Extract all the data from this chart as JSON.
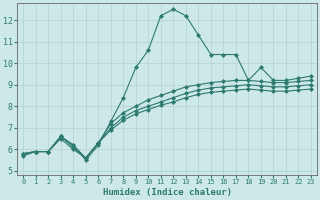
{
  "title": "",
  "xlabel": "Humidex (Indice chaleur)",
  "ylabel": "",
  "bg_color": "#cce8e8",
  "grid_color": "#b8d4d4",
  "line_color": "#2d7a6e",
  "xlim": [
    -0.5,
    23.5
  ],
  "ylim": [
    4.8,
    12.8
  ],
  "yticks": [
    5,
    6,
    7,
    8,
    9,
    10,
    11,
    12
  ],
  "xticks": [
    0,
    1,
    2,
    3,
    4,
    5,
    6,
    7,
    8,
    9,
    10,
    11,
    12,
    13,
    14,
    15,
    16,
    17,
    18,
    19,
    20,
    21,
    22,
    23
  ],
  "lines": [
    {
      "x": [
        0,
        1,
        2,
        3,
        4,
        5,
        6,
        7,
        8,
        9,
        10,
        11,
        12,
        13,
        14,
        15,
        16,
        17,
        18,
        19,
        20,
        21,
        22,
        23
      ],
      "y": [
        5.7,
        5.9,
        5.9,
        6.6,
        6.2,
        5.5,
        6.2,
        7.3,
        8.4,
        9.8,
        10.6,
        12.2,
        12.5,
        12.2,
        11.3,
        10.4,
        10.4,
        10.4,
        9.2,
        9.8,
        9.2,
        9.2,
        9.3,
        9.4
      ]
    },
    {
      "x": [
        0,
        1,
        2,
        3,
        4,
        5,
        6,
        7,
        8,
        9,
        10,
        11,
        12,
        13,
        14,
        15,
        16,
        17,
        18,
        19,
        20,
        21,
        22,
        23
      ],
      "y": [
        5.8,
        5.9,
        5.9,
        6.6,
        6.2,
        5.6,
        6.3,
        7.2,
        7.7,
        8.0,
        8.3,
        8.5,
        8.7,
        8.9,
        9.0,
        9.1,
        9.15,
        9.2,
        9.2,
        9.15,
        9.1,
        9.1,
        9.15,
        9.2
      ]
    },
    {
      "x": [
        0,
        1,
        2,
        3,
        4,
        5,
        6,
        7,
        8,
        9,
        10,
        11,
        12,
        13,
        14,
        15,
        16,
        17,
        18,
        19,
        20,
        21,
        22,
        23
      ],
      "y": [
        5.8,
        5.9,
        5.9,
        6.6,
        6.1,
        5.6,
        6.3,
        7.0,
        7.5,
        7.8,
        8.0,
        8.2,
        8.4,
        8.6,
        8.75,
        8.85,
        8.9,
        8.95,
        9.0,
        8.95,
        8.9,
        8.9,
        8.95,
        9.0
      ]
    },
    {
      "x": [
        0,
        1,
        2,
        3,
        4,
        5,
        6,
        7,
        8,
        9,
        10,
        11,
        12,
        13,
        14,
        15,
        16,
        17,
        18,
        19,
        20,
        21,
        22,
        23
      ],
      "y": [
        5.8,
        5.9,
        5.9,
        6.5,
        6.0,
        5.6,
        6.3,
        6.9,
        7.35,
        7.65,
        7.85,
        8.05,
        8.2,
        8.4,
        8.55,
        8.65,
        8.7,
        8.75,
        8.8,
        8.75,
        8.7,
        8.7,
        8.75,
        8.8
      ]
    }
  ],
  "marker": "D",
  "markersize": 2.0,
  "linewidth": 0.8
}
